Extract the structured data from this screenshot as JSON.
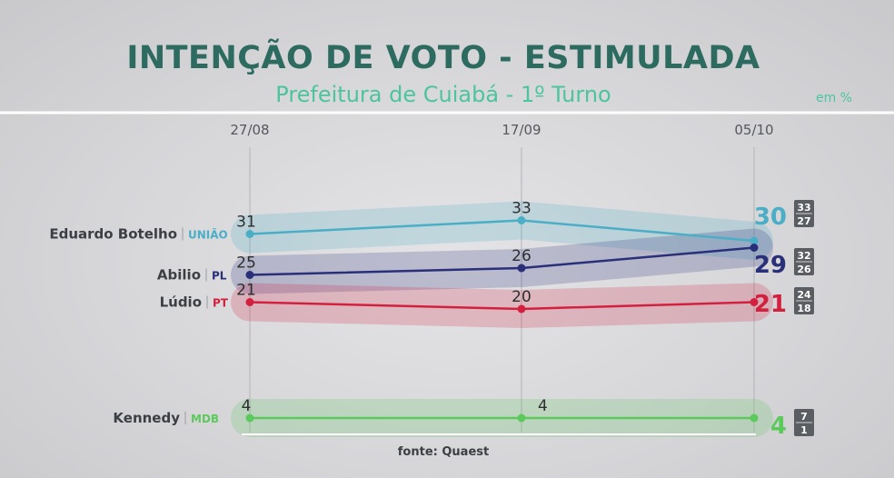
{
  "colors": {
    "title": "#2d6b61",
    "subtitle": "#4cc49c",
    "botelho": "#4aaec6",
    "abilio": "#2a2f7a",
    "ludio": "#d4203f",
    "kennedy": "#5cc95c"
  },
  "chart_data": {
    "type": "line",
    "title": "INTENÇÃO DE VOTO - ESTIMULADA",
    "subtitle": "Prefeitura de Cuiabá - 1º Turno",
    "unit_note": "em %",
    "source": "fonte: Quaest",
    "categories": [
      "27/08",
      "17/09",
      "05/10"
    ],
    "ylim": [
      0,
      36
    ],
    "grid": "vertical lines at each date",
    "series": [
      {
        "name": "Eduardo Botelho",
        "party": "UNIÃO",
        "color": "#4aaec6",
        "values": [
          31,
          33,
          30
        ],
        "labels": [
          "31",
          "33",
          "30"
        ],
        "margin_upper": "33",
        "margin_lower": "27"
      },
      {
        "name": "Abilio",
        "party": "PL",
        "color": "#2a2f7a",
        "values": [
          25,
          26,
          29
        ],
        "labels": [
          "25",
          "26",
          "29"
        ],
        "margin_upper": "32",
        "margin_lower": "26"
      },
      {
        "name": "Lúdio",
        "party": "PT",
        "color": "#d4203f",
        "values": [
          21,
          20,
          21
        ],
        "labels": [
          "21",
          "20",
          "21"
        ],
        "margin_upper": "24",
        "margin_lower": "18"
      },
      {
        "name": "Kennedy",
        "party": "MDB",
        "color": "#5cc95c",
        "values": [
          4,
          4,
          4
        ],
        "labels": [
          "4",
          "4",
          "4"
        ],
        "margin_upper": "7",
        "margin_lower": "1"
      }
    ]
  }
}
